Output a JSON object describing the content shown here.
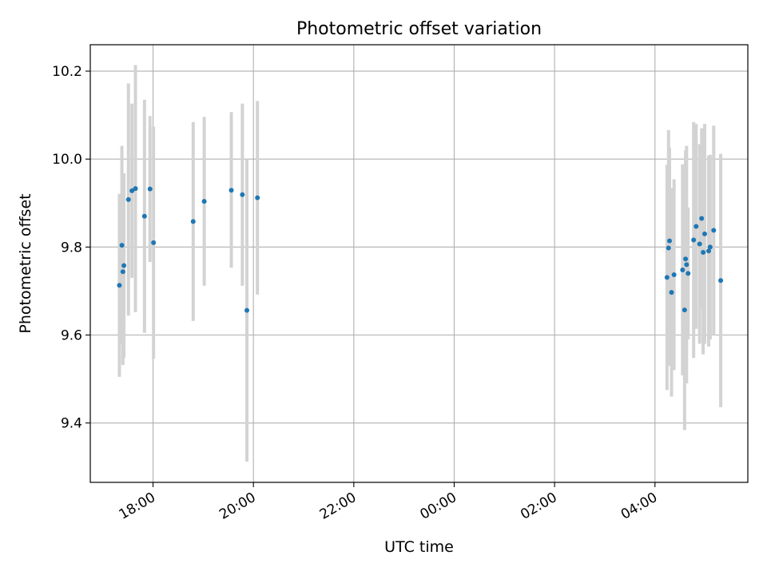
{
  "chart_data": {
    "type": "scatter",
    "title": "Photometric offset variation",
    "xlabel": "UTC time",
    "ylabel": "Photometric offset",
    "grid": true,
    "x_unit": "hours since 00:00 of the second day (negative = previous day)",
    "xlim": [
      -7.25,
      5.85
    ],
    "ylim": [
      9.265,
      10.26
    ],
    "x_ticks": [
      {
        "value": -6,
        "label": "18:00"
      },
      {
        "value": -4,
        "label": "20:00"
      },
      {
        "value": -2,
        "label": "22:00"
      },
      {
        "value": 0,
        "label": "00:00"
      },
      {
        "value": 2,
        "label": "02:00"
      },
      {
        "value": 4,
        "label": "04:00"
      }
    ],
    "y_ticks": [
      {
        "value": 9.4,
        "label": "9.4"
      },
      {
        "value": 9.6,
        "label": "9.6"
      },
      {
        "value": 9.8,
        "label": "9.8"
      },
      {
        "value": 10.0,
        "label": "10.0"
      },
      {
        "value": 10.2,
        "label": "10.2"
      }
    ],
    "colors": {
      "point": "#1f77b4",
      "errorbar": "#d3d3d3",
      "grid": "#b0b0b0"
    },
    "points": [
      {
        "x": -6.67,
        "y": 9.713,
        "ylo": 9.505,
        "yhi": 9.921
      },
      {
        "x": -6.62,
        "y": 9.804,
        "ylo": 9.578,
        "yhi": 10.03
      },
      {
        "x": -6.6,
        "y": 9.744,
        "ylo": 9.532,
        "yhi": 9.956
      },
      {
        "x": -6.58,
        "y": 9.758,
        "ylo": 9.548,
        "yhi": 9.968
      },
      {
        "x": -6.49,
        "y": 9.908,
        "ylo": 9.644,
        "yhi": 10.172
      },
      {
        "x": -6.42,
        "y": 9.928,
        "ylo": 9.73,
        "yhi": 10.126
      },
      {
        "x": -6.35,
        "y": 9.933,
        "ylo": 9.652,
        "yhi": 10.214
      },
      {
        "x": -6.17,
        "y": 9.87,
        "ylo": 9.605,
        "yhi": 10.135
      },
      {
        "x": -6.06,
        "y": 9.932,
        "ylo": 9.766,
        "yhi": 10.098
      },
      {
        "x": -5.99,
        "y": 9.81,
        "ylo": 9.546,
        "yhi": 10.074
      },
      {
        "x": -5.2,
        "y": 9.858,
        "ylo": 9.632,
        "yhi": 10.084
      },
      {
        "x": -4.98,
        "y": 9.904,
        "ylo": 9.712,
        "yhi": 10.096
      },
      {
        "x": -4.44,
        "y": 9.929,
        "ylo": 9.753,
        "yhi": 10.107
      },
      {
        "x": -4.22,
        "y": 9.919,
        "ylo": 9.712,
        "yhi": 10.126
      },
      {
        "x": -4.13,
        "y": 9.656,
        "ylo": 9.312,
        "yhi": 10.0
      },
      {
        "x": -3.92,
        "y": 9.912,
        "ylo": 9.692,
        "yhi": 10.132
      },
      {
        "x": 4.24,
        "y": 9.731,
        "ylo": 9.475,
        "yhi": 9.987
      },
      {
        "x": 4.27,
        "y": 9.798,
        "ylo": 9.53,
        "yhi": 10.066
      },
      {
        "x": 4.29,
        "y": 9.814,
        "ylo": 9.602,
        "yhi": 10.026
      },
      {
        "x": 4.33,
        "y": 9.697,
        "ylo": 9.46,
        "yhi": 9.934
      },
      {
        "x": 4.38,
        "y": 9.737,
        "ylo": 9.52,
        "yhi": 9.954
      },
      {
        "x": 4.55,
        "y": 9.748,
        "ylo": 9.508,
        "yhi": 9.988
      },
      {
        "x": 4.59,
        "y": 9.657,
        "ylo": 9.384,
        "yhi": 9.93
      },
      {
        "x": 4.61,
        "y": 9.773,
        "ylo": 9.526,
        "yhi": 10.02
      },
      {
        "x": 4.63,
        "y": 9.76,
        "ylo": 9.49,
        "yhi": 10.03
      },
      {
        "x": 4.66,
        "y": 9.74,
        "ylo": 9.59,
        "yhi": 9.89
      },
      {
        "x": 4.77,
        "y": 9.816,
        "ylo": 9.548,
        "yhi": 10.084
      },
      {
        "x": 4.82,
        "y": 9.847,
        "ylo": 9.614,
        "yhi": 10.08
      },
      {
        "x": 4.89,
        "y": 9.807,
        "ylo": 9.58,
        "yhi": 10.034
      },
      {
        "x": 4.93,
        "y": 9.865,
        "ylo": 9.66,
        "yhi": 10.07
      },
      {
        "x": 4.96,
        "y": 9.788,
        "ylo": 9.556,
        "yhi": 10.02
      },
      {
        "x": 4.99,
        "y": 9.83,
        "ylo": 9.58,
        "yhi": 10.08
      },
      {
        "x": 5.07,
        "y": 9.791,
        "ylo": 9.574,
        "yhi": 10.008
      },
      {
        "x": 5.1,
        "y": 9.8,
        "ylo": 9.59,
        "yhi": 10.01
      },
      {
        "x": 5.17,
        "y": 9.838,
        "ylo": 9.6,
        "yhi": 10.076
      },
      {
        "x": 5.31,
        "y": 9.724,
        "ylo": 9.436,
        "yhi": 10.012
      }
    ]
  }
}
